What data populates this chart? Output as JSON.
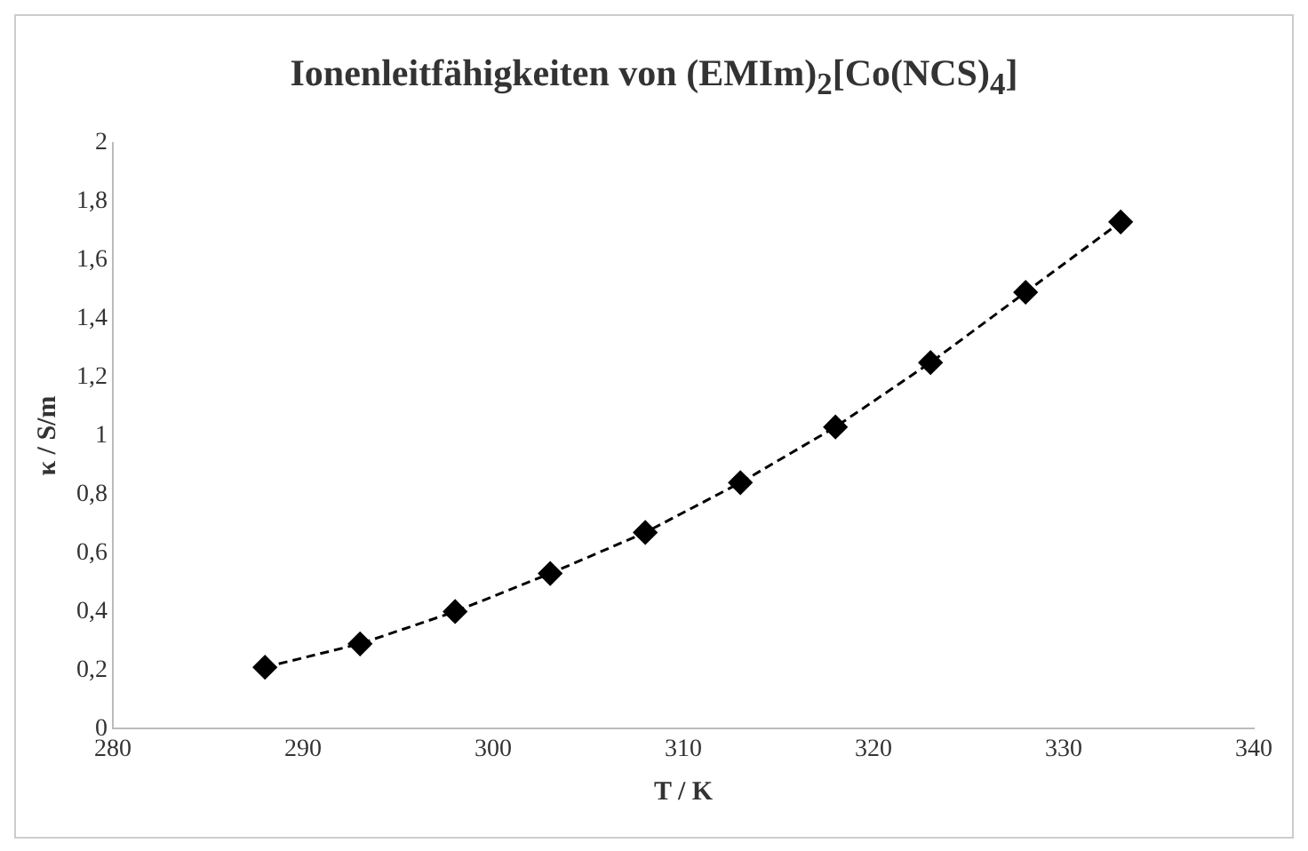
{
  "chart_data": {
    "type": "line",
    "title": "Ionenleitfähigkeiten von (EMIm)$_{2}$[Co(NCS)$_{4}$]",
    "xlabel": "T / K",
    "ylabel": "κ / S/m",
    "x": [
      288,
      293,
      298,
      303,
      308,
      313,
      318,
      323,
      328,
      333
    ],
    "series": [
      {
        "color": "#000000",
        "values": [
          0.21,
          0.29,
          0.4,
          0.53,
          0.67,
          0.84,
          1.03,
          1.25,
          1.49,
          1.73
        ]
      }
    ],
    "xlim": [
      280,
      340
    ],
    "xticks": [
      280,
      290,
      300,
      310,
      320,
      330,
      340
    ],
    "ylim": [
      0,
      2
    ],
    "yticks": [
      0,
      {
        "value": 0.2,
        "label": "0,2"
      },
      {
        "value": 0.4,
        "label": "0,4"
      },
      {
        "value": 0.6,
        "label": "0,6"
      },
      {
        "value": 0.8,
        "label": "0,8"
      },
      1,
      {
        "value": 1.2,
        "label": "1,2"
      },
      {
        "value": 1.4,
        "label": "1,4"
      },
      {
        "value": 1.6,
        "label": "1,6"
      },
      {
        "value": 1.8,
        "label": "1,8"
      },
      2
    ],
    "grid": false,
    "legend": false,
    "marker": "diamond",
    "line_style": "dashed"
  }
}
